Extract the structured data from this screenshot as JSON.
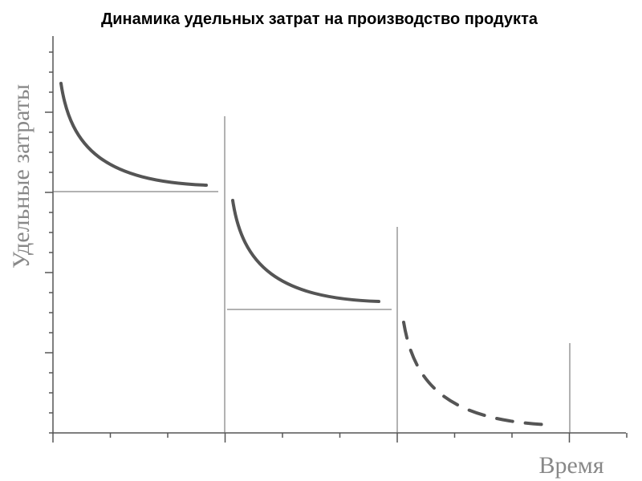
{
  "title": "Динамика удельных затрат на производство продукта",
  "y_axis_label": "Удельные затраты",
  "x_axis_label": "Время"
}
